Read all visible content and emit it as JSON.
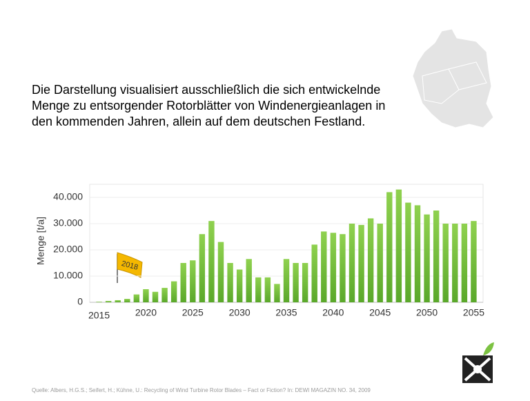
{
  "intro_lines": [
    "Die Darstellung visualisiert ausschließlich die sich entwickelnde",
    "Menge zu entsorgender Rotorblätter von Windenergieanlagen in",
    "den kommenden Jahren, allein auf dem deutschen Festland."
  ],
  "source": "Quelle:  Albers, H.G.S.; Seifert, H.; Kühne, U.: Recycling of Wind Turbine Rotor Blades – Fact or Fiction?  In: DEWI  MAGAZIN NO. 34, 2009",
  "chart_data": {
    "type": "bar",
    "y_label": "Menge [t/a]",
    "annotation": "2018",
    "color": "#7cc242",
    "grid": true,
    "x": [
      2015,
      2016,
      2017,
      2018,
      2019,
      2020,
      2021,
      2022,
      2023,
      2024,
      2025,
      2026,
      2027,
      2028,
      2029,
      2030,
      2031,
      2032,
      2033,
      2034,
      2035,
      2036,
      2037,
      2038,
      2039,
      2040,
      2041,
      2042,
      2043,
      2044,
      2045,
      2046,
      2047,
      2048,
      2049,
      2050,
      2051,
      2052,
      2053,
      2054,
      2055
    ],
    "values": [
      200,
      500,
      800,
      1300,
      3000,
      5000,
      4000,
      5500,
      8000,
      15000,
      16000,
      26000,
      31000,
      23000,
      15000,
      12500,
      16500,
      9500,
      9500,
      7000,
      16500,
      15000,
      15000,
      22000,
      27000,
      26500,
      26000,
      30000,
      29500,
      32000,
      30000,
      42000,
      43000,
      38000,
      37000,
      33500,
      35000,
      30000,
      30000,
      30000,
      31000
    ],
    "xlim": [
      2014,
      2056
    ],
    "xticks": [
      2015,
      2020,
      2025,
      2030,
      2035,
      2040,
      2045,
      2050,
      2055
    ],
    "ylim": [
      0,
      45000
    ],
    "yticks": [
      0,
      {
        "value": 10000,
        "label": "10.000"
      },
      {
        "value": 20000,
        "label": "20.000"
      },
      {
        "value": 30000,
        "label": "30.000"
      },
      {
        "value": 40000,
        "label": "40.000"
      }
    ]
  }
}
